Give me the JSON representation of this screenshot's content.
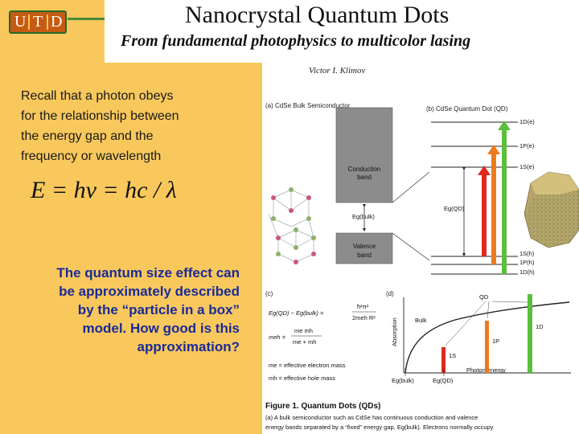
{
  "logo": {
    "letters": [
      "U",
      "T",
      "D"
    ]
  },
  "title": "Nanocrystal Quantum Dots",
  "subtitle": "From fundamental photophysics to multicolor lasing",
  "author": "Victor I. Klimov",
  "intro_lines": [
    "Recall that a photon obeys",
    "for the relationship between",
    "the energy gap and the",
    "frequency or wavelength"
  ],
  "equation": "E = hν = hc / λ",
  "question_lines": [
    "The quantum size effect can",
    "be approximately described",
    "by the “particle in a box”",
    "model. How good is this",
    "approximation?"
  ],
  "figure": {
    "panel_a_label": "(a) CdSe Bulk Semiconductor",
    "panel_b_label": "(b) CdSe Quantum Dot (QD)",
    "conduction_band": [
      "Conduction",
      "band"
    ],
    "valence_band": [
      "Valence",
      "band"
    ],
    "eg_bulk": "Eg(bulk)",
    "eg_qd": "Eg(QD)",
    "levels_electron": [
      "1D(e)",
      "1P(e)",
      "1S(e)"
    ],
    "levels_hole": [
      "1S(h)",
      "1P(h)",
      "1D(h)"
    ],
    "panel_c_label": "(c)",
    "panel_d_label": "(d)",
    "eq_c_lhs": "Eg(QD) − Eg(bulk) =",
    "eq_c_numer": "ħ²π²",
    "eq_c_denom": "2meh R²",
    "eq_mass_lhs": "meh =",
    "eq_mass_numer": "me mh",
    "eq_mass_denom": "me + mh",
    "legend_me": "me = effective electron mass",
    "legend_mh": "mh = effective hole mass",
    "d_qd": "QD",
    "d_bulk": "Bulk",
    "d_1s": "1S",
    "d_1p": "1P",
    "d_1d": "1D",
    "d_ylabel": "Absorption",
    "d_xlabel": "Photon energy",
    "d_eg_bulk": "Eg(bulk)",
    "d_eg_qd": "Eg(QD)",
    "caption_title": "Figure 1. Quantum Dots (QDs)",
    "caption_line1": "(a) A bulk semiconductor such as CdSe has continuous conduction and valence",
    "caption_line2": "energy bands separated by a “fixed” energy gap, Eg(bulk). Electrons normally occupy"
  },
  "colors": {
    "panel": "#f8c85c",
    "logo": "#c75b12",
    "question": "#1a2a99",
    "arrow_red": "#e0281e",
    "arrow_orange": "#ee7a1e",
    "arrow_green": "#5bbf3c"
  }
}
